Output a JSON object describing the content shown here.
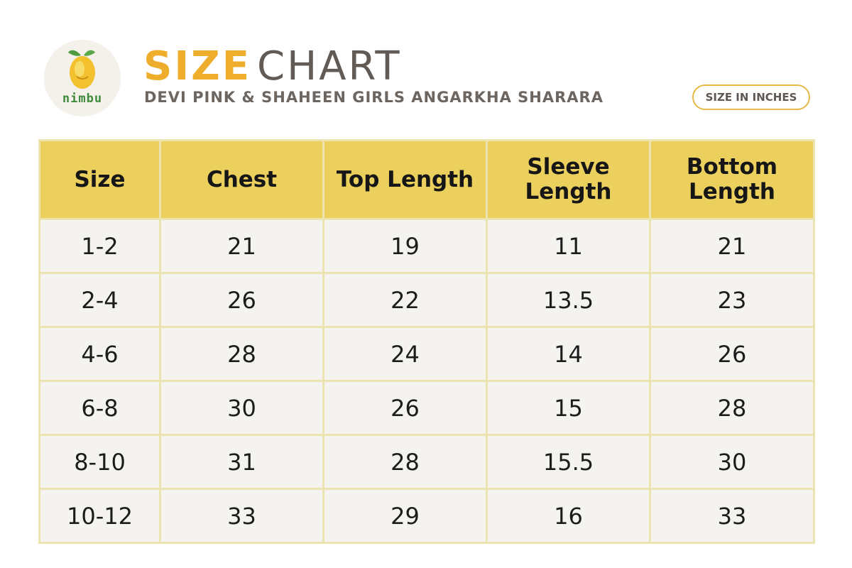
{
  "brand": {
    "logo_text": "nimbu"
  },
  "header": {
    "title_part1": "SIZE",
    "title_part2": "CHART",
    "subtitle": "DEVI PINK & SHAHEEN GIRLS ANGARKHA SHARARA",
    "units_badge": "SIZE IN INCHES"
  },
  "colors": {
    "accent_orange": "#eeae2c",
    "header_yellow": "#ecd05e",
    "cell_bg": "#f4f3ef",
    "border": "#ebe3b0",
    "logo_green": "#3c8a3a"
  },
  "table": {
    "columns": [
      "Size",
      "Chest",
      "Top Length",
      "Sleeve Length",
      "Bottom Length"
    ],
    "rows": [
      [
        "1-2",
        "21",
        "19",
        "11",
        "21"
      ],
      [
        "2-4",
        "26",
        "22",
        "13.5",
        "23"
      ],
      [
        "4-6",
        "28",
        "24",
        "14",
        "26"
      ],
      [
        "6-8",
        "30",
        "26",
        "15",
        "28"
      ],
      [
        "8-10",
        "31",
        "28",
        "15.5",
        "30"
      ],
      [
        "10-12",
        "33",
        "29",
        "16",
        "33"
      ]
    ]
  }
}
